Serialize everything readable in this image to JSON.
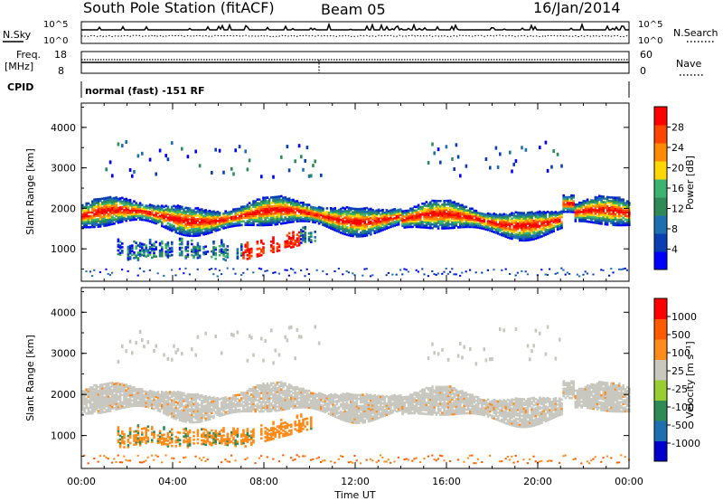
{
  "header": {
    "station": "South Pole Station (fitACF)",
    "beam": "Beam 05",
    "date": "16/Jan/2014"
  },
  "strip_panels": {
    "nsky_label": "N.Sky",
    "nsearch_label": "N.Search",
    "nsky_ticks": [
      "10^5",
      "10^0"
    ],
    "freq_label": "Freq.",
    "freq_unit": "[MHz]",
    "freq_ticks": [
      "18",
      "8"
    ],
    "nave_label": "Nave",
    "nave_ticks": [
      "60",
      "0"
    ],
    "cpid_label": "CPID",
    "cpid_value": "normal (fast) -151 RF"
  },
  "x_axis": {
    "label": "Time UT",
    "ticks": [
      "00:00",
      "04:00",
      "08:00",
      "12:00",
      "16:00",
      "20:00",
      "00:00"
    ]
  },
  "colors": {
    "power": [
      "#0000ff",
      "#0a3fb4",
      "#1e6fb0",
      "#2e8b57",
      "#3cb371",
      "#ffd700",
      "#ff8c00",
      "#ff4500",
      "#ff0000"
    ],
    "velocity": [
      "#ff0000",
      "#ff5a00",
      "#ff8c1a",
      "#c8c8c0",
      "#9acd32",
      "#2e8b57",
      "#1e6fb0",
      "#0000cc"
    ]
  },
  "chart_data": [
    {
      "type": "heatmap",
      "ylabel": "Slant Range [km]",
      "xlabel": "Time UT",
      "xlim": [
        0,
        24
      ],
      "ylim": [
        200,
        4600
      ],
      "yticks": [
        "4000",
        "3000",
        "2000",
        "1000"
      ],
      "colorbar": {
        "label": "Power [dB]",
        "ticks": [
          "28",
          "24",
          "20",
          "16",
          "12",
          "8",
          "4"
        ],
        "range": [
          0,
          32
        ]
      }
    },
    {
      "type": "heatmap",
      "ylabel": "Slant Range [km]",
      "xlabel": "Time UT",
      "xlim": [
        0,
        24
      ],
      "ylim": [
        200,
        4600
      ],
      "yticks": [
        "4000",
        "3000",
        "2000",
        "1000"
      ],
      "colorbar": {
        "label": "Velocity [m s⁻¹]",
        "ticks": [
          "1000",
          "500",
          "100",
          "25",
          "-25",
          "-100",
          "-500",
          "-1000"
        ]
      }
    }
  ]
}
